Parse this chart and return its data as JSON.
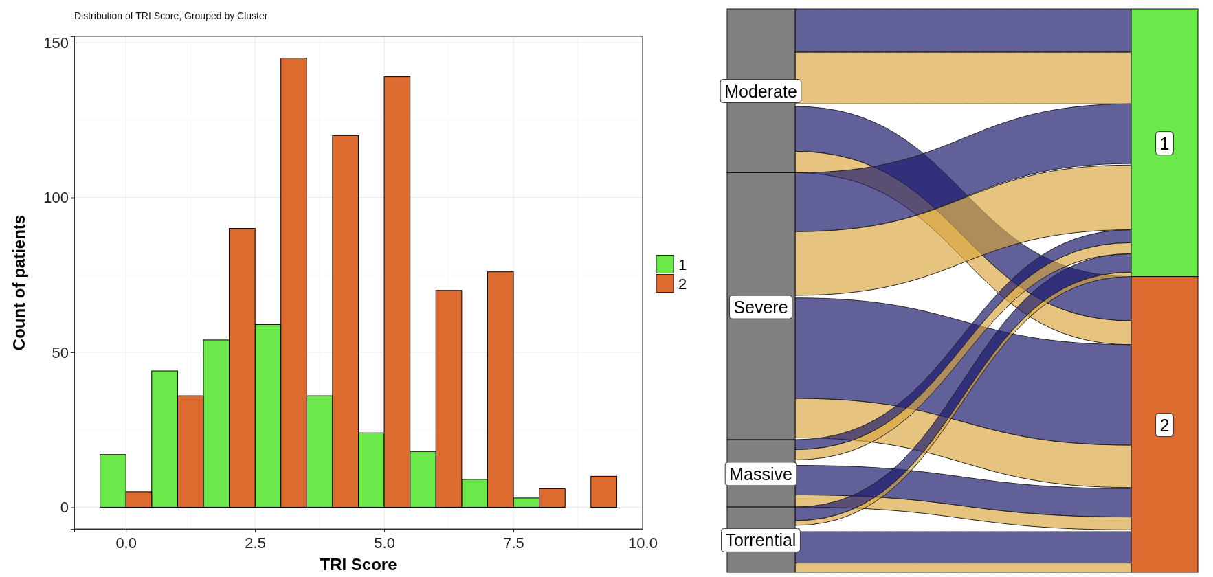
{
  "chart_data": [
    {
      "type": "bar",
      "title": "Distribution of TRI Score, Grouped by Cluster",
      "xlabel": "TRI Score",
      "ylabel": "Count of patients",
      "x": [
        0,
        1,
        2,
        3,
        4,
        5,
        6,
        7,
        8,
        9
      ],
      "series": [
        {
          "name": "1",
          "color": "#6be84a",
          "values": [
            17,
            44,
            54,
            59,
            36,
            24,
            18,
            9,
            3,
            0
          ]
        },
        {
          "name": "2",
          "color": "#dd6a2f",
          "values": [
            5,
            36,
            90,
            145,
            120,
            139,
            70,
            76,
            6,
            10
          ]
        }
      ],
      "xlim": [
        -1,
        10
      ],
      "xticks": [
        {
          "value": 0,
          "label": "0.0"
        },
        {
          "value": 2.5,
          "label": "2.5"
        },
        {
          "value": 5,
          "label": "5.0"
        },
        {
          "value": 7.5,
          "label": "7.5"
        },
        {
          "value": 10,
          "label": "10.0"
        }
      ],
      "ylim": [
        -7,
        152
      ],
      "yticks": [
        0,
        50,
        100,
        150
      ],
      "grid": true,
      "legend": "right"
    },
    {
      "type": "other",
      "annotations": [
        "Moderate",
        "Severe",
        "Massive",
        "Torrential",
        "1",
        "2"
      ]
    }
  ]
}
